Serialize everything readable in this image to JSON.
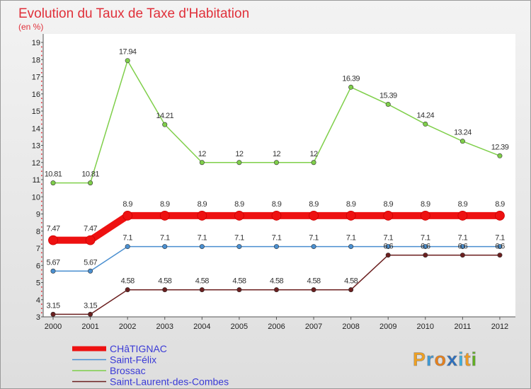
{
  "chart_data": {
    "type": "line",
    "title": "Evolution du Taux de Taxe d'Habitation",
    "subtitle": "(en %)",
    "x": [
      2000,
      2001,
      2002,
      2003,
      2004,
      2005,
      2006,
      2007,
      2008,
      2009,
      2010,
      2011,
      2012
    ],
    "ylim": [
      3,
      19
    ],
    "yticks": [
      3,
      4,
      5,
      6,
      7,
      8,
      9,
      10,
      11,
      12,
      13,
      14,
      15,
      16,
      17,
      18,
      19
    ],
    "grid": false,
    "legend_position": "bottom-left",
    "series": [
      {
        "name": "CHâTIGNAC",
        "color": "#ee1111",
        "values": [
          7.47,
          7.47,
          8.9,
          8.9,
          8.9,
          8.9,
          8.9,
          8.9,
          8.9,
          8.9,
          8.9,
          8.9,
          8.9
        ],
        "labels": [
          "7.47",
          "7.47",
          "8.9",
          "8.9",
          "8.9",
          "8.9",
          "8.9",
          "8.9",
          "8.9",
          "8.9",
          "8.9",
          "8.9",
          "8.9"
        ]
      },
      {
        "name": "Saint-Félix",
        "color": "#4a8fd0",
        "values": [
          5.67,
          5.67,
          7.1,
          7.1,
          7.1,
          7.1,
          7.1,
          7.1,
          7.1,
          7.1,
          7.1,
          7.1,
          7.1
        ],
        "labels": [
          "5.67",
          "5.67",
          "7.1",
          "7.1",
          "7.1",
          "7.1",
          "7.1",
          "7.1",
          "7.1",
          "7.1",
          "7.1",
          "7.1",
          "7.1"
        ]
      },
      {
        "name": "Brossac",
        "color": "#7fcf4a",
        "values": [
          10.81,
          10.81,
          17.94,
          14.21,
          12,
          12,
          12,
          12,
          16.39,
          15.39,
          14.24,
          13.24,
          12.39
        ],
        "labels": [
          "10.81",
          "10.81",
          "17.94",
          "14.21",
          "12",
          "12",
          "12",
          "12",
          "16.39",
          "15.39",
          "14.24",
          "13.24",
          "12.39"
        ]
      },
      {
        "name": "Saint-Laurent-des-Combes",
        "color": "#6b1f1f",
        "values": [
          3.15,
          3.15,
          4.58,
          4.58,
          4.58,
          4.58,
          4.58,
          4.58,
          4.58,
          6.6,
          6.6,
          6.6,
          6.6
        ],
        "labels": [
          "3.15",
          "3.15",
          "4.58",
          "4.58",
          "4.58",
          "4.58",
          "4.58",
          "4.58",
          "4.58",
          "6.6",
          "6.6",
          "6.6",
          "6.6"
        ]
      }
    ]
  },
  "logo": {
    "letters": [
      "P",
      "r",
      "o",
      "x",
      "i",
      "t",
      "i"
    ],
    "colors": [
      "#f0a020",
      "#3a9ad9",
      "#e8801a",
      "#2a6fc0",
      "#3ab0e0",
      "#f09a20",
      "#60b020"
    ]
  }
}
